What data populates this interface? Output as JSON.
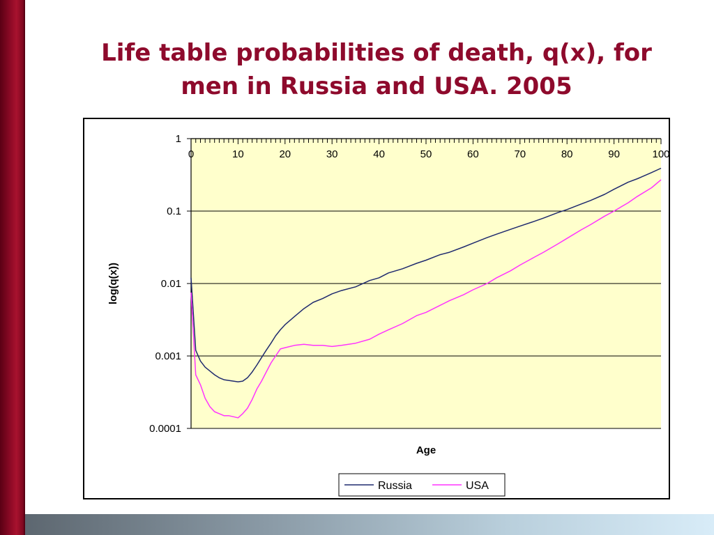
{
  "slide": {
    "title_line1": "Life table probabilities of death, q(x), for",
    "title_line2": "men in Russia and USA. 2005"
  },
  "colors": {
    "title": "#8e0a2c",
    "plot_bg": "#ffffcc",
    "russia": "#1f2a6e",
    "usa": "#ff33ff"
  },
  "chart_data": {
    "type": "line",
    "title": "",
    "xlabel": "Age",
    "ylabel": "log(q(x))",
    "y_scale": "log",
    "xlim": [
      0,
      100
    ],
    "ylim": [
      0.0001,
      1
    ],
    "x_ticks": [
      0,
      10,
      20,
      30,
      40,
      50,
      60,
      70,
      80,
      90,
      100
    ],
    "x_tick_labels": [
      "0",
      "10",
      "20",
      "30",
      "40",
      "50",
      "60",
      "70",
      "80",
      "90",
      "100"
    ],
    "y_ticks": [
      1,
      0.1,
      0.01,
      0.001,
      0.0001
    ],
    "y_tick_labels": [
      "1",
      "0.1",
      "0.01",
      "0.001",
      "0.0001"
    ],
    "grid": "horizontal",
    "legend_position": "bottom",
    "series": [
      {
        "name": "Russia",
        "x": [
          0,
          1,
          2,
          3,
          4,
          5,
          6,
          7,
          8,
          9,
          10,
          11,
          12,
          13,
          14,
          15,
          16,
          17,
          18,
          19,
          20,
          22,
          24,
          26,
          28,
          30,
          32,
          35,
          38,
          40,
          42,
          45,
          48,
          50,
          53,
          55,
          58,
          60,
          63,
          65,
          68,
          70,
          73,
          75,
          78,
          80,
          83,
          85,
          88,
          90,
          93,
          95,
          98,
          100
        ],
        "y": [
          0.012,
          0.0012,
          0.00085,
          0.0007,
          0.00062,
          0.00055,
          0.0005,
          0.00047,
          0.00046,
          0.00045,
          0.00044,
          0.00045,
          0.0005,
          0.0006,
          0.00075,
          0.00095,
          0.0012,
          0.0015,
          0.0019,
          0.0023,
          0.0027,
          0.0035,
          0.0045,
          0.0055,
          0.0062,
          0.0072,
          0.008,
          0.009,
          0.011,
          0.012,
          0.014,
          0.016,
          0.019,
          0.021,
          0.025,
          0.027,
          0.032,
          0.036,
          0.043,
          0.048,
          0.056,
          0.062,
          0.072,
          0.08,
          0.095,
          0.105,
          0.125,
          0.14,
          0.17,
          0.2,
          0.25,
          0.28,
          0.34,
          0.39
        ]
      },
      {
        "name": "USA",
        "x": [
          0,
          1,
          2,
          3,
          4,
          5,
          6,
          7,
          8,
          9,
          10,
          11,
          12,
          13,
          14,
          15,
          16,
          17,
          18,
          19,
          20,
          22,
          24,
          26,
          28,
          30,
          32,
          35,
          38,
          40,
          42,
          45,
          48,
          50,
          53,
          55,
          58,
          60,
          63,
          65,
          68,
          70,
          73,
          75,
          78,
          80,
          83,
          85,
          88,
          90,
          93,
          95,
          98,
          100
        ],
        "y": [
          0.0075,
          0.00055,
          0.0004,
          0.00026,
          0.0002,
          0.00017,
          0.00016,
          0.00015,
          0.00015,
          0.000145,
          0.00014,
          0.00016,
          0.00019,
          0.00025,
          0.00035,
          0.00045,
          0.0006,
          0.0008,
          0.001,
          0.00125,
          0.0013,
          0.0014,
          0.00145,
          0.0014,
          0.0014,
          0.00135,
          0.0014,
          0.0015,
          0.0017,
          0.002,
          0.0023,
          0.0028,
          0.0036,
          0.004,
          0.005,
          0.0058,
          0.007,
          0.0082,
          0.01,
          0.012,
          0.015,
          0.018,
          0.023,
          0.027,
          0.035,
          0.042,
          0.055,
          0.065,
          0.085,
          0.1,
          0.13,
          0.16,
          0.21,
          0.27
        ]
      }
    ]
  }
}
